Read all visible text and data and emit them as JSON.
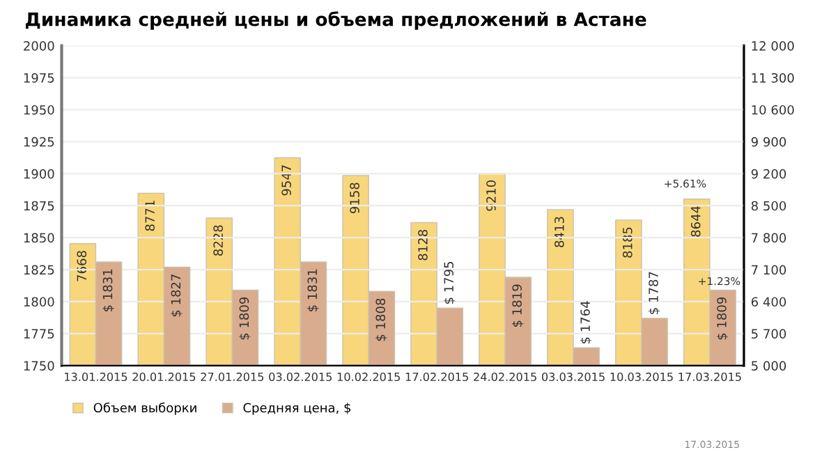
{
  "chart_data": {
    "type": "bar",
    "title": "Динамика средней цены и объема предложений в Астане",
    "categories": [
      "13.01.2015",
      "20.01.2015",
      "27.01.2015",
      "03.02.2015",
      "10.02.2015",
      "17.02.2015",
      "24.02.2015",
      "03.03.2015",
      "10.03.2015",
      "17.03.2015"
    ],
    "series": [
      {
        "name": "Объем выборки",
        "color": "#f8d67c",
        "axis": "y2",
        "values": [
          7668,
          8771,
          8228,
          9547,
          9158,
          8128,
          9210,
          8413,
          8185,
          8644
        ],
        "value_labels": [
          "7668",
          "8771",
          "8228",
          "9547",
          "9158",
          "8128",
          "9210",
          "8413",
          "8185",
          "8644"
        ]
      },
      {
        "name": "Средняя цена, $",
        "color": "#d9ac8e",
        "axis": "y",
        "values": [
          1831,
          1827,
          1809,
          1831,
          1808,
          1795,
          1819,
          1764,
          1787,
          1809
        ],
        "value_labels": [
          "$ 1831",
          "$ 1827",
          "$ 1809",
          "$ 1831",
          "$ 1808",
          "$ 1795",
          "$ 1819",
          "$ 1764",
          "$ 1787",
          "$ 1809"
        ]
      }
    ],
    "ylim": [
      1750,
      2000
    ],
    "yticks": [
      1750,
      1775,
      1800,
      1825,
      1850,
      1875,
      1900,
      1925,
      1950,
      1975,
      2000
    ],
    "y2lim": [
      5000,
      12000
    ],
    "y2ticks": [
      {
        "value": 5000,
        "label": "5 000"
      },
      {
        "value": 5700,
        "label": "5 700"
      },
      {
        "value": 6400,
        "label": "6 400"
      },
      {
        "value": 7100,
        "label": "7 100"
      },
      {
        "value": 7800,
        "label": "7 800"
      },
      {
        "value": 8500,
        "label": "8 500"
      },
      {
        "value": 9200,
        "label": "9 200"
      },
      {
        "value": 9900,
        "label": "9 900"
      },
      {
        "value": 10600,
        "label": "10 600"
      },
      {
        "value": 11300,
        "label": "11 300"
      },
      {
        "value": 12000,
        "label": "12 000"
      }
    ],
    "grid": "y",
    "legend": "bottom left",
    "annotations": [
      "+5.61%",
      "+1.23%",
      "17.03.2015"
    ]
  }
}
